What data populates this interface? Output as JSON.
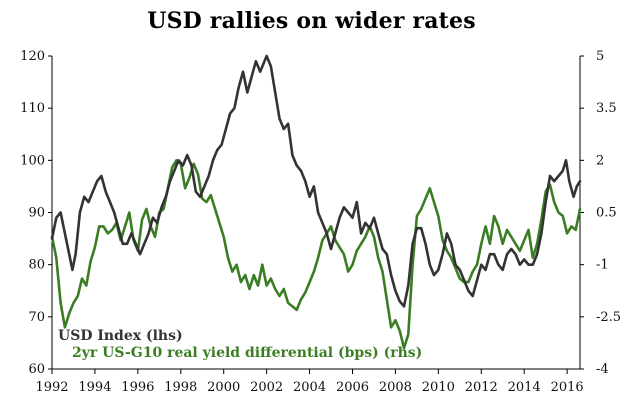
{
  "chart_data": {
    "type": "line",
    "title": "USD rallies on wider rates",
    "xlabel": "",
    "ylabel": "",
    "x_ticks": [
      "1992",
      "1994",
      "1996",
      "1998",
      "2000",
      "2002",
      "2004",
      "2006",
      "2008",
      "2010",
      "2012",
      "2014",
      "2016"
    ],
    "xlim": [
      1992,
      2016.6
    ],
    "left_axis": {
      "ylim": [
        60,
        120
      ],
      "ticks": [
        "60",
        "70",
        "80",
        "90",
        "100",
        "110",
        "120"
      ]
    },
    "right_axis": {
      "ylim": [
        -4,
        5
      ],
      "ticks": [
        "-4",
        "-2.5",
        "-1",
        "0.5",
        "2",
        "3.5",
        "5"
      ]
    },
    "legend_position": "bottom-left",
    "series": [
      {
        "name": "USD Index (lhs)",
        "axis": "left",
        "color": "#333333",
        "points": [
          [
            1992.0,
            85
          ],
          [
            1992.2,
            89
          ],
          [
            1992.4,
            90
          ],
          [
            1992.6,
            86
          ],
          [
            1992.8,
            82
          ],
          [
            1992.95,
            79
          ],
          [
            1993.1,
            82
          ],
          [
            1993.3,
            90
          ],
          [
            1993.5,
            93
          ],
          [
            1993.7,
            92
          ],
          [
            1993.9,
            94
          ],
          [
            1994.1,
            96
          ],
          [
            1994.3,
            97
          ],
          [
            1994.5,
            94
          ],
          [
            1994.7,
            92
          ],
          [
            1994.9,
            90
          ],
          [
            1995.1,
            87
          ],
          [
            1995.3,
            84
          ],
          [
            1995.5,
            84
          ],
          [
            1995.7,
            86
          ],
          [
            1995.9,
            84
          ],
          [
            1996.1,
            82
          ],
          [
            1996.3,
            84
          ],
          [
            1996.5,
            86
          ],
          [
            1996.7,
            89
          ],
          [
            1996.9,
            88
          ],
          [
            1997.1,
            91
          ],
          [
            1997.3,
            93
          ],
          [
            1997.5,
            96
          ],
          [
            1997.7,
            98
          ],
          [
            1997.9,
            100
          ],
          [
            1998.1,
            99
          ],
          [
            1998.3,
            101
          ],
          [
            1998.5,
            99
          ],
          [
            1998.7,
            94
          ],
          [
            1998.9,
            93
          ],
          [
            1999.1,
            95
          ],
          [
            1999.3,
            97
          ],
          [
            1999.5,
            100
          ],
          [
            1999.7,
            102
          ],
          [
            1999.9,
            103
          ],
          [
            2000.1,
            106
          ],
          [
            2000.3,
            109
          ],
          [
            2000.5,
            110
          ],
          [
            2000.7,
            114
          ],
          [
            2000.9,
            117
          ],
          [
            2001.1,
            113
          ],
          [
            2001.3,
            116
          ],
          [
            2001.5,
            119
          ],
          [
            2001.7,
            117
          ],
          [
            2001.9,
            119
          ],
          [
            2002.0,
            120
          ],
          [
            2002.2,
            118
          ],
          [
            2002.4,
            113
          ],
          [
            2002.6,
            108
          ],
          [
            2002.8,
            106
          ],
          [
            2003.0,
            107
          ],
          [
            2003.2,
            101
          ],
          [
            2003.4,
            99
          ],
          [
            2003.6,
            98
          ],
          [
            2003.8,
            96
          ],
          [
            2004.0,
            93
          ],
          [
            2004.2,
            95
          ],
          [
            2004.4,
            90
          ],
          [
            2004.6,
            88
          ],
          [
            2004.8,
            86
          ],
          [
            2005.0,
            83
          ],
          [
            2005.2,
            86
          ],
          [
            2005.4,
            89
          ],
          [
            2005.6,
            91
          ],
          [
            2005.8,
            90
          ],
          [
            2006.0,
            89
          ],
          [
            2006.2,
            92
          ],
          [
            2006.4,
            86
          ],
          [
            2006.6,
            88
          ],
          [
            2006.8,
            87
          ],
          [
            2007.0,
            89
          ],
          [
            2007.2,
            86
          ],
          [
            2007.4,
            83
          ],
          [
            2007.6,
            82
          ],
          [
            2007.8,
            78
          ],
          [
            2008.0,
            75
          ],
          [
            2008.2,
            73
          ],
          [
            2008.4,
            72
          ],
          [
            2008.6,
            76
          ],
          [
            2008.8,
            84
          ],
          [
            2009.0,
            87
          ],
          [
            2009.2,
            87
          ],
          [
            2009.4,
            84
          ],
          [
            2009.6,
            80
          ],
          [
            2009.8,
            78
          ],
          [
            2010.0,
            79
          ],
          [
            2010.2,
            82
          ],
          [
            2010.4,
            86
          ],
          [
            2010.6,
            84
          ],
          [
            2010.8,
            80
          ],
          [
            2011.0,
            79
          ],
          [
            2011.2,
            77
          ],
          [
            2011.4,
            75
          ],
          [
            2011.6,
            74
          ],
          [
            2011.8,
            77
          ],
          [
            2012.0,
            80
          ],
          [
            2012.2,
            79
          ],
          [
            2012.4,
            82
          ],
          [
            2012.6,
            82
          ],
          [
            2012.8,
            80
          ],
          [
            2013.0,
            79
          ],
          [
            2013.2,
            82
          ],
          [
            2013.4,
            83
          ],
          [
            2013.6,
            82
          ],
          [
            2013.8,
            80
          ],
          [
            2014.0,
            81
          ],
          [
            2014.2,
            80
          ],
          [
            2014.4,
            80
          ],
          [
            2014.6,
            82
          ],
          [
            2014.8,
            86
          ],
          [
            2015.0,
            92
          ],
          [
            2015.2,
            97
          ],
          [
            2015.4,
            96
          ],
          [
            2015.6,
            97
          ],
          [
            2015.8,
            98
          ],
          [
            2015.95,
            100
          ],
          [
            2016.1,
            96
          ],
          [
            2016.3,
            93
          ],
          [
            2016.45,
            95
          ],
          [
            2016.6,
            96
          ]
        ]
      },
      {
        "name": "2yr US-G10 real yield differential (bps) (rhs)",
        "axis": "right",
        "color": "#3a7d23",
        "points": [
          [
            1992.0,
            -0.2
          ],
          [
            1992.2,
            -0.8
          ],
          [
            1992.4,
            -2.1
          ],
          [
            1992.6,
            -2.8
          ],
          [
            1992.8,
            -2.4
          ],
          [
            1993.0,
            -2.1
          ],
          [
            1993.2,
            -1.9
          ],
          [
            1993.4,
            -1.4
          ],
          [
            1993.6,
            -1.6
          ],
          [
            1993.8,
            -0.9
          ],
          [
            1994.0,
            -0.5
          ],
          [
            1994.2,
            0.1
          ],
          [
            1994.4,
            0.1
          ],
          [
            1994.6,
            -0.1
          ],
          [
            1994.8,
            0.0
          ],
          [
            1995.0,
            0.2
          ],
          [
            1995.2,
            -0.3
          ],
          [
            1995.4,
            0.1
          ],
          [
            1995.6,
            0.5
          ],
          [
            1995.8,
            -0.3
          ],
          [
            1996.0,
            -0.6
          ],
          [
            1996.2,
            0.3
          ],
          [
            1996.4,
            0.6
          ],
          [
            1996.6,
            0.1
          ],
          [
            1996.8,
            -0.2
          ],
          [
            1997.0,
            0.5
          ],
          [
            1997.2,
            0.6
          ],
          [
            1997.4,
            1.2
          ],
          [
            1997.6,
            1.8
          ],
          [
            1997.8,
            2.0
          ],
          [
            1998.0,
            1.9
          ],
          [
            1998.2,
            1.2
          ],
          [
            1998.4,
            1.5
          ],
          [
            1998.6,
            1.9
          ],
          [
            1998.8,
            1.6
          ],
          [
            1999.0,
            0.9
          ],
          [
            1999.2,
            0.8
          ],
          [
            1999.4,
            1.0
          ],
          [
            1999.6,
            0.6
          ],
          [
            1999.8,
            0.2
          ],
          [
            2000.0,
            -0.2
          ],
          [
            2000.2,
            -0.8
          ],
          [
            2000.4,
            -1.2
          ],
          [
            2000.6,
            -1.0
          ],
          [
            2000.8,
            -1.5
          ],
          [
            2001.0,
            -1.3
          ],
          [
            2001.2,
            -1.7
          ],
          [
            2001.4,
            -1.3
          ],
          [
            2001.6,
            -1.6
          ],
          [
            2001.8,
            -1.0
          ],
          [
            2002.0,
            -1.6
          ],
          [
            2002.2,
            -1.4
          ],
          [
            2002.4,
            -1.7
          ],
          [
            2002.6,
            -1.9
          ],
          [
            2002.8,
            -1.7
          ],
          [
            2003.0,
            -2.1
          ],
          [
            2003.2,
            -2.2
          ],
          [
            2003.4,
            -2.3
          ],
          [
            2003.6,
            -2.0
          ],
          [
            2003.8,
            -1.8
          ],
          [
            2004.0,
            -1.5
          ],
          [
            2004.2,
            -1.2
          ],
          [
            2004.4,
            -0.8
          ],
          [
            2004.6,
            -0.3
          ],
          [
            2004.8,
            -0.1
          ],
          [
            2005.0,
            0.1
          ],
          [
            2005.2,
            -0.3
          ],
          [
            2005.4,
            -0.5
          ],
          [
            2005.6,
            -0.7
          ],
          [
            2005.8,
            -1.2
          ],
          [
            2006.0,
            -1.0
          ],
          [
            2006.2,
            -0.6
          ],
          [
            2006.4,
            -0.4
          ],
          [
            2006.6,
            -0.2
          ],
          [
            2006.8,
            0.1
          ],
          [
            2007.0,
            -0.2
          ],
          [
            2007.2,
            -0.8
          ],
          [
            2007.4,
            -1.2
          ],
          [
            2007.6,
            -2.0
          ],
          [
            2007.8,
            -2.8
          ],
          [
            2008.0,
            -2.6
          ],
          [
            2008.2,
            -2.9
          ],
          [
            2008.4,
            -3.4
          ],
          [
            2008.6,
            -3.0
          ],
          [
            2008.8,
            -1.0
          ],
          [
            2009.0,
            0.4
          ],
          [
            2009.2,
            0.6
          ],
          [
            2009.4,
            0.9
          ],
          [
            2009.6,
            1.2
          ],
          [
            2009.8,
            0.8
          ],
          [
            2010.0,
            0.4
          ],
          [
            2010.2,
            -0.3
          ],
          [
            2010.4,
            -0.6
          ],
          [
            2010.6,
            -0.8
          ],
          [
            2010.8,
            -1.1
          ],
          [
            2011.0,
            -1.4
          ],
          [
            2011.2,
            -1.5
          ],
          [
            2011.4,
            -1.5
          ],
          [
            2011.6,
            -1.2
          ],
          [
            2011.8,
            -1.0
          ],
          [
            2012.0,
            -0.4
          ],
          [
            2012.2,
            0.1
          ],
          [
            2012.4,
            -0.4
          ],
          [
            2012.6,
            0.4
          ],
          [
            2012.8,
            0.1
          ],
          [
            2013.0,
            -0.4
          ],
          [
            2013.2,
            0.0
          ],
          [
            2013.4,
            -0.2
          ],
          [
            2013.6,
            -0.4
          ],
          [
            2013.8,
            -0.6
          ],
          [
            2014.0,
            -0.3
          ],
          [
            2014.2,
            0.0
          ],
          [
            2014.4,
            -0.8
          ],
          [
            2014.6,
            -0.4
          ],
          [
            2014.8,
            0.3
          ],
          [
            2015.0,
            1.1
          ],
          [
            2015.2,
            1.3
          ],
          [
            2015.4,
            0.8
          ],
          [
            2015.6,
            0.5
          ],
          [
            2015.8,
            0.4
          ],
          [
            2016.0,
            -0.1
          ],
          [
            2016.2,
            0.1
          ],
          [
            2016.4,
            0.0
          ],
          [
            2016.6,
            0.6
          ]
        ]
      }
    ]
  }
}
